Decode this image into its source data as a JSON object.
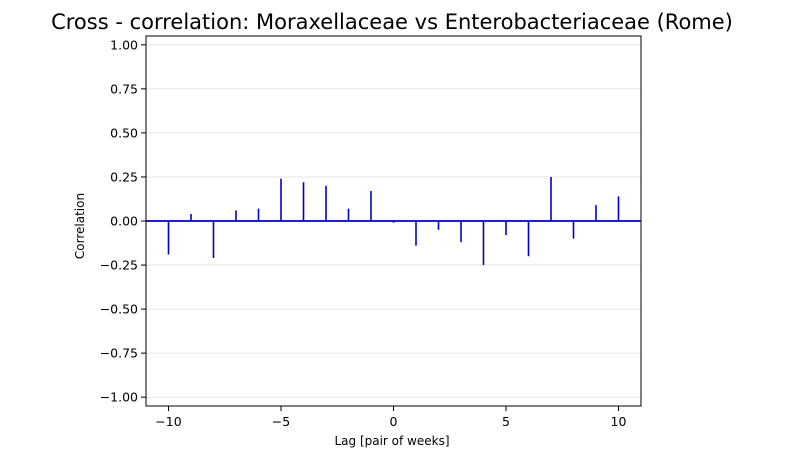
{
  "chart_data": {
    "type": "stem",
    "title": "Cross - correlation: Moraxellaceae vs Enterobacteriaceae (Rome)",
    "xlabel": "Lag [pair of weeks]",
    "ylabel": "Correlation",
    "xlim": [
      -11.0,
      11.0
    ],
    "ylim": [
      -1.05,
      1.05
    ],
    "grid": "horizontal",
    "x_ticks": [
      -10,
      -5,
      0,
      5,
      10
    ],
    "x_tick_labels": [
      "−10",
      "−5",
      "0",
      "5",
      "10"
    ],
    "y_ticks": [
      -1.0,
      -0.75,
      -0.5,
      -0.25,
      0.0,
      0.25,
      0.5,
      0.75,
      1.0
    ],
    "y_tick_labels": [
      "−1.00",
      "−0.75",
      "−0.50",
      "−0.25",
      "0.00",
      "0.25",
      "0.50",
      "0.75",
      "1.00"
    ],
    "x": [
      -10,
      -9,
      -8,
      -7,
      -6,
      -5,
      -4,
      -3,
      -2,
      -1,
      0,
      1,
      2,
      3,
      4,
      5,
      6,
      7,
      8,
      9,
      10
    ],
    "values": [
      -0.19,
      0.04,
      -0.21,
      0.06,
      0.07,
      0.24,
      0.22,
      0.2,
      0.07,
      0.17,
      -0.01,
      -0.14,
      -0.05,
      -0.12,
      -0.25,
      -0.08,
      -0.2,
      0.25,
      -0.1,
      0.09,
      0.14
    ],
    "baseline": 0.0,
    "colors": {
      "stem": "#0000cc",
      "baseline": "#0000cc",
      "grid": "#e6e6e6",
      "axes": "#000000"
    }
  }
}
